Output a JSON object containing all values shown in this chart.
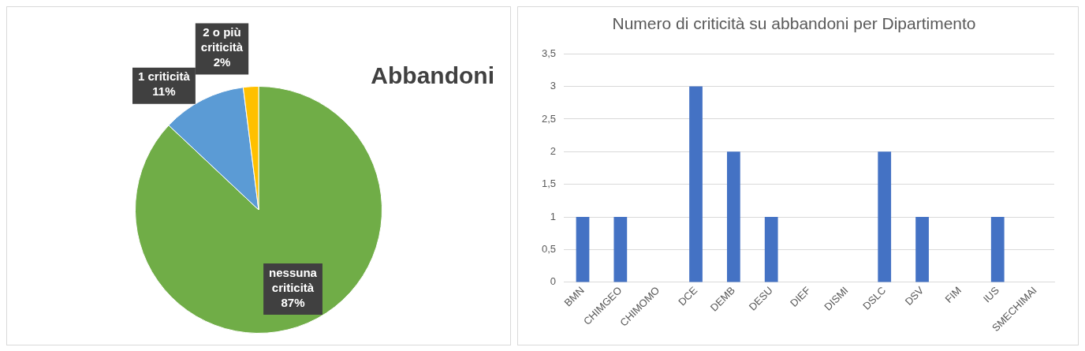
{
  "chart_data": [
    {
      "type": "pie",
      "title": "Abbandoni",
      "categories": [
        "nessuna criticità",
        "1 criticità",
        "2 o più criticità"
      ],
      "values": [
        87,
        11,
        2
      ],
      "colors": [
        "#70ad47",
        "#5b9bd5",
        "#ffc000"
      ],
      "value_labels": [
        "87%",
        "11%",
        "2%"
      ],
      "legend": false
    },
    {
      "type": "bar",
      "title": "Numero di criticità su abbandoni per Dipartimento",
      "categories": [
        "BMN",
        "CHIMGEO",
        "CHIMOMO",
        "DCE",
        "DEMB",
        "DESU",
        "DIEF",
        "DISMI",
        "DSLC",
        "DSV",
        "FIM",
        "IUS",
        "SMECHIMAI"
      ],
      "values": [
        1,
        1,
        0,
        3,
        2,
        1,
        0,
        0,
        2,
        1,
        0,
        1,
        0
      ],
      "color": "#4472c4",
      "ylim": [
        0,
        3.5
      ],
      "yticks": [
        0,
        {
          "value": 0.5,
          "label": "0,5"
        },
        1,
        {
          "value": 1.5,
          "label": "1,5"
        },
        2,
        {
          "value": 2.5,
          "label": "2,5"
        },
        3,
        {
          "value": 3.5,
          "label": "3,5"
        }
      ],
      "grid": "y",
      "legend": false
    }
  ]
}
